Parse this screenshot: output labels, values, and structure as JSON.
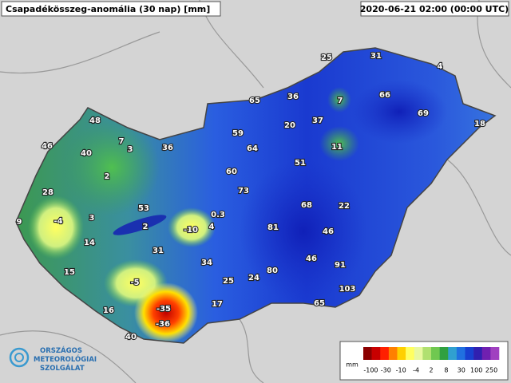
{
  "header": {
    "title": "Csapadékösszeg-anomália (30 nap) [mm]",
    "timestamp": "2020-06-21 02:00 (00:00 UTC)"
  },
  "map": {
    "values": [
      25,
      31,
      4,
      65,
      36,
      7,
      66,
      69,
      18,
      48,
      46,
      7,
      3,
      36,
      59,
      64,
      20,
      37,
      11,
      40,
      2,
      60,
      51,
      28,
      73,
      53,
      0.3,
      68,
      22,
      9,
      -4,
      3,
      2,
      -10,
      4,
      81,
      46,
      14,
      31,
      34,
      46,
      91,
      15,
      80,
      -5,
      25,
      24,
      103,
      -35,
      17,
      65,
      16,
      -36,
      40
    ]
  },
  "legend": {
    "unit": "mm",
    "ticks": [
      -100,
      -30,
      -10,
      -4,
      2,
      8,
      30,
      100,
      250
    ],
    "colors": [
      "#8b0000",
      "#c80000",
      "#ff2000",
      "#ff8000",
      "#ffd000",
      "#ffff60",
      "#e8f8a0",
      "#b0e070",
      "#70c850",
      "#30a040",
      "#30a0d0",
      "#2070e0",
      "#1840d0",
      "#3020b0",
      "#7020b0",
      "#a040c0"
    ]
  },
  "logo": {
    "line1": "ORSZÁGOS",
    "line2": "METEOROLÓGIAI",
    "line3": "SZOLGÁLAT"
  }
}
